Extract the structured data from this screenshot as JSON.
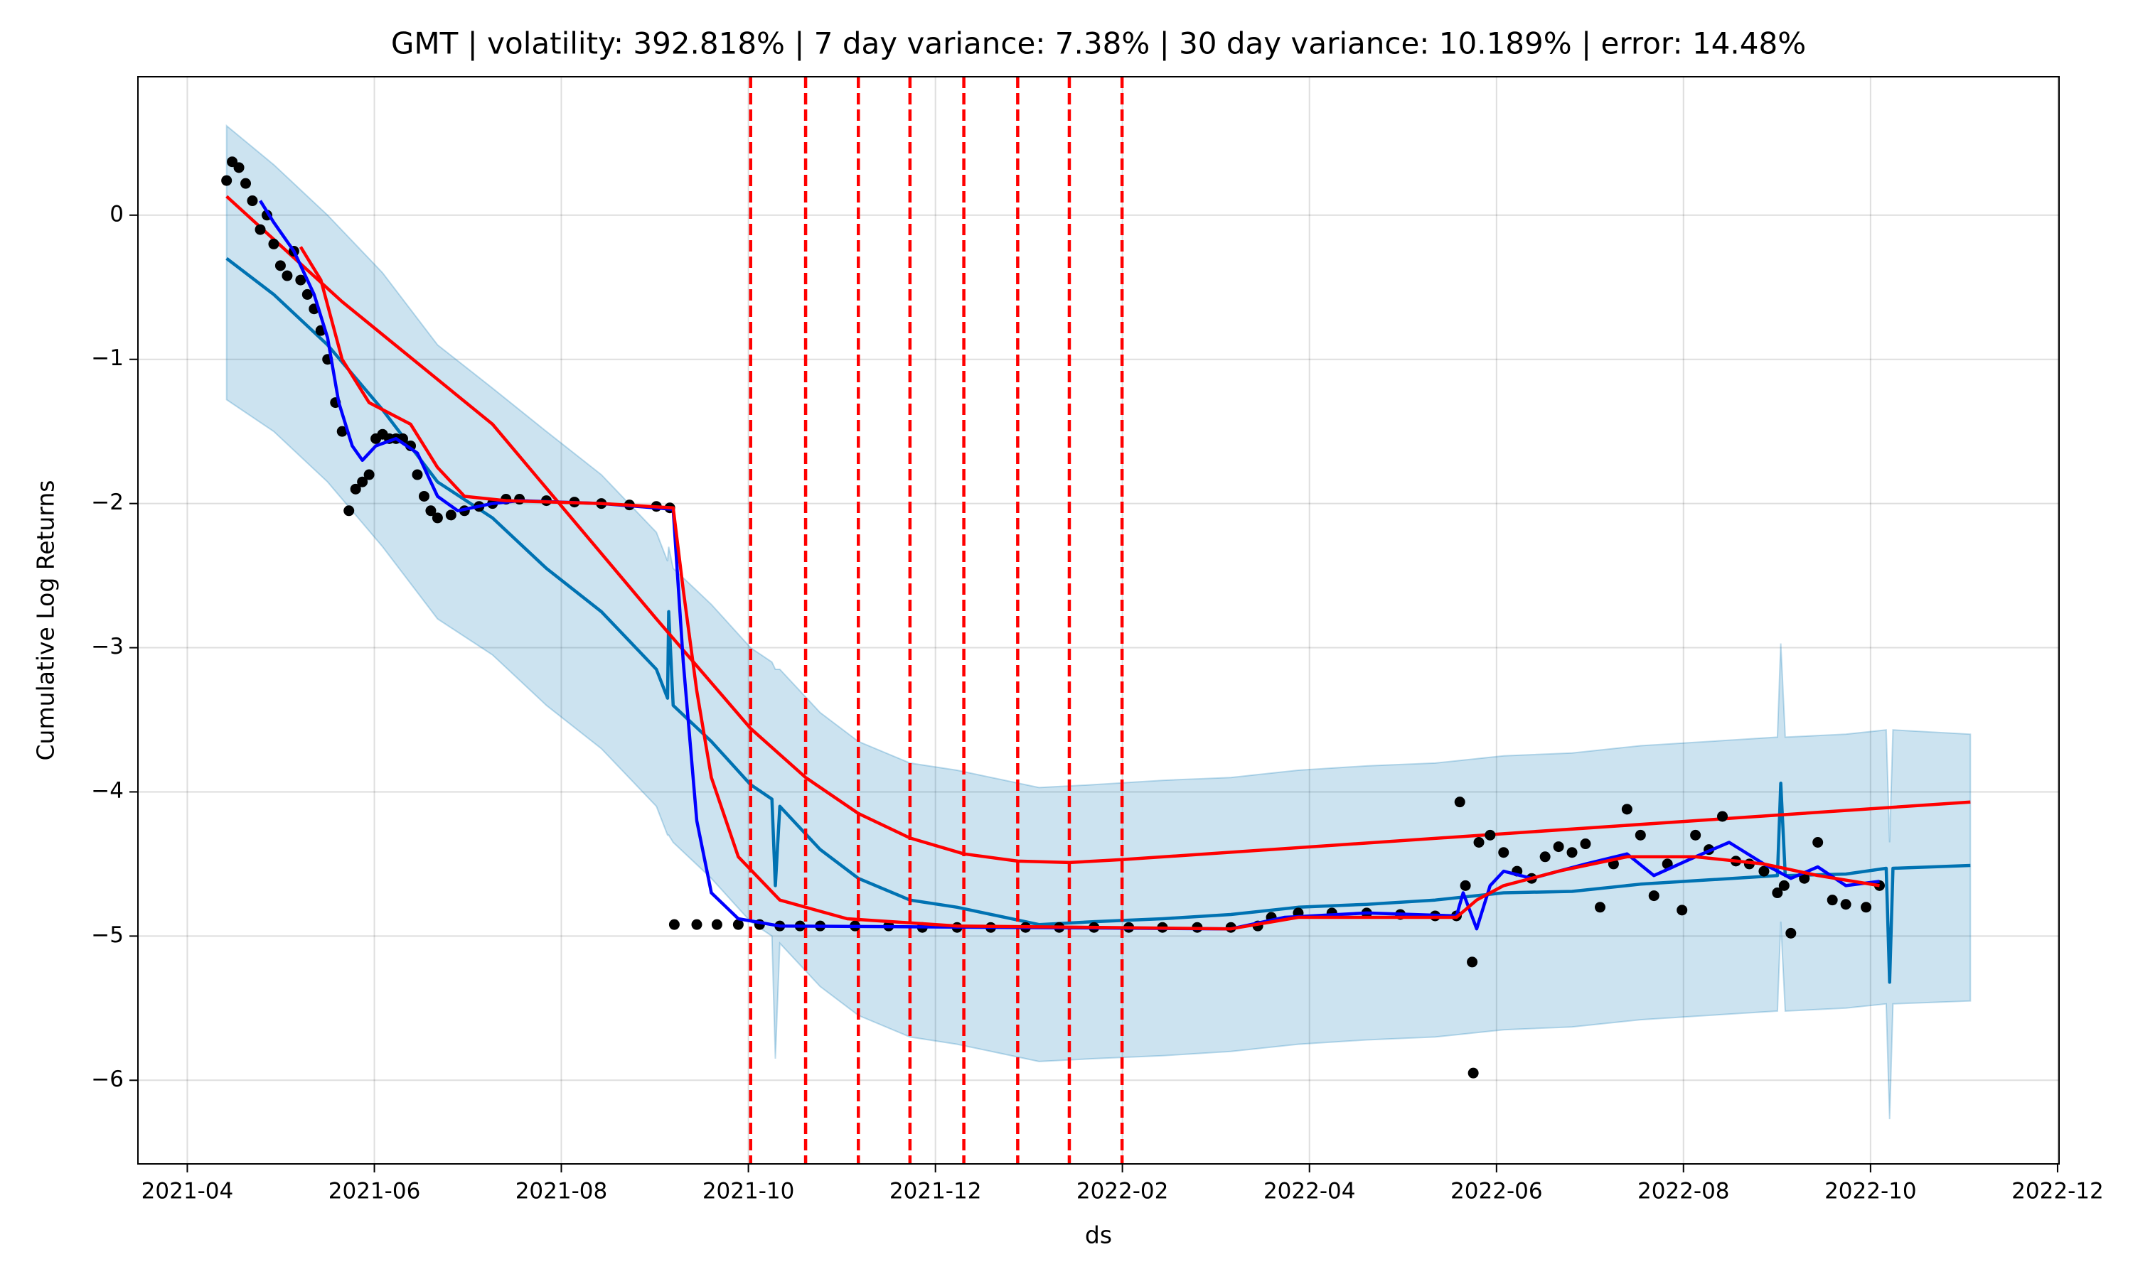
{
  "chart_data": {
    "type": "line",
    "title": "GMT | volatility: 392.818% | 7 day variance: 7.38% | 30 day variance: 10.189% | error: 14.48%",
    "xlabel": "ds",
    "ylabel": "Cumulative Log Returns",
    "grid": true,
    "xlim": [
      2021.206,
      2022.918
    ],
    "ylim": [
      -6.58,
      0.96
    ],
    "xticks": [
      {
        "value": 2021.25,
        "label": "2021-04"
      },
      {
        "value": 2021.4167,
        "label": "2021-06"
      },
      {
        "value": 2021.5833,
        "label": "2021-08"
      },
      {
        "value": 2021.75,
        "label": "2021-10"
      },
      {
        "value": 2021.9167,
        "label": "2021-12"
      },
      {
        "value": 2022.0833,
        "label": "2022-02"
      },
      {
        "value": 2022.25,
        "label": "2022-04"
      },
      {
        "value": 2022.4167,
        "label": "2022-06"
      },
      {
        "value": 2022.5833,
        "label": "2022-08"
      },
      {
        "value": 2022.75,
        "label": "2022-10"
      },
      {
        "value": 2022.9167,
        "label": "2022-12"
      }
    ],
    "yticks": [
      0,
      {
        "value": -1,
        "label": "−1"
      },
      {
        "value": -2,
        "label": "−2"
      },
      {
        "value": -3,
        "label": "−3"
      },
      {
        "value": -4,
        "label": "−4"
      },
      {
        "value": -5,
        "label": "−5"
      },
      {
        "value": -6,
        "label": "−6"
      }
    ],
    "series": [
      {
        "type": "line",
        "color": "#0072B2",
        "band_color": "#0072B2",
        "x": [
          2021.285,
          2021.327,
          2021.375,
          2021.424,
          2021.473,
          2021.522,
          2021.57,
          2021.619,
          2021.668,
          2021.678,
          2021.679,
          2021.683,
          2021.717,
          2021.752,
          2021.771,
          2021.774,
          2021.778,
          2021.814,
          2021.848,
          2021.894,
          2021.936,
          2022.009,
          2022.058,
          2022.119,
          2022.18,
          2022.24,
          2022.301,
          2022.362,
          2022.423,
          2022.484,
          2022.545,
          2022.606,
          2022.667,
          2022.67,
          2022.674,
          2022.728,
          2022.764,
          2022.767,
          2022.77,
          2022.839
        ],
        "values": [
          -0.3,
          -0.55,
          -0.9,
          -1.35,
          -1.85,
          -2.1,
          -2.45,
          -2.75,
          -3.15,
          -3.35,
          -2.75,
          -3.4,
          -3.65,
          -3.95,
          -4.05,
          -4.65,
          -4.1,
          -4.4,
          -4.6,
          -4.75,
          -4.8,
          -4.92,
          -4.9,
          -4.88,
          -4.85,
          -4.8,
          -4.78,
          -4.75,
          -4.7,
          -4.69,
          -4.64,
          -4.61,
          -4.58,
          -3.94,
          -4.58,
          -4.57,
          -4.53,
          -5.32,
          -4.53,
          -4.51
        ],
        "upper": [
          0.62,
          0.35,
          0.0,
          -0.4,
          -0.9,
          -1.2,
          -1.5,
          -1.8,
          -2.2,
          -2.4,
          -2.3,
          -2.45,
          -2.7,
          -3.0,
          -3.1,
          -3.15,
          -3.15,
          -3.45,
          -3.65,
          -3.8,
          -3.85,
          -3.97,
          -3.95,
          -3.92,
          -3.9,
          -3.85,
          -3.82,
          -3.8,
          -3.75,
          -3.73,
          -3.68,
          -3.65,
          -3.62,
          -2.97,
          -3.62,
          -3.6,
          -3.57,
          -4.35,
          -3.57,
          -3.6
        ],
        "lower": [
          -1.28,
          -1.5,
          -1.85,
          -2.3,
          -2.8,
          -3.05,
          -3.4,
          -3.7,
          -4.1,
          -4.3,
          -4.3,
          -4.35,
          -4.6,
          -4.9,
          -5.0,
          -5.85,
          -5.05,
          -5.35,
          -5.55,
          -5.7,
          -5.75,
          -5.87,
          -5.85,
          -5.83,
          -5.8,
          -5.75,
          -5.72,
          -5.7,
          -5.65,
          -5.63,
          -5.58,
          -5.55,
          -5.52,
          -4.9,
          -5.52,
          -5.5,
          -5.47,
          -6.27,
          -5.47,
          -5.45
        ]
      },
      {
        "type": "line",
        "color": "#ff0000",
        "x": [
          2021.285,
          2021.388,
          2021.522,
          2021.668,
          2021.752,
          2021.801,
          2021.848,
          2021.894,
          2021.942,
          2021.99,
          2022.036,
          2022.083,
          2022.839
        ],
        "values": [
          0.13,
          -0.6,
          -1.45,
          -2.8,
          -3.56,
          -3.9,
          -4.15,
          -4.32,
          -4.43,
          -4.48,
          -4.49,
          -4.47,
          -4.07
        ]
      },
      {
        "type": "scatter",
        "color": "#000000",
        "x": [
          2021.285,
          2021.29,
          2021.296,
          2021.302,
          2021.308,
          2021.315,
          2021.321,
          2021.327,
          2021.333,
          2021.339,
          2021.345,
          2021.351,
          2021.357,
          2021.363,
          2021.369,
          2021.375,
          2021.382,
          2021.388,
          2021.394,
          2021.4,
          2021.406,
          2021.412,
          2021.418,
          2021.424,
          2021.43,
          2021.436,
          2021.442,
          2021.449,
          2021.455,
          2021.461,
          2021.467,
          2021.473,
          2021.485,
          2021.497,
          2021.51,
          2021.522,
          2021.534,
          2021.546,
          2021.57,
          2021.595,
          2021.619,
          2021.644,
          2021.668,
          2021.68,
          2021.684,
          2021.704,
          2021.722,
          2021.741,
          2021.76,
          2021.778,
          2021.796,
          2021.814,
          2021.845,
          2021.875,
          2021.905,
          2021.936,
          2021.966,
          2021.997,
          2022.027,
          2022.058,
          2022.089,
          2022.119,
          2022.15,
          2022.18,
          2022.204,
          2022.216,
          2022.24,
          2022.27,
          2022.301,
          2022.331,
          2022.362,
          2022.381,
          2022.384,
          2022.389,
          2022.395,
          2022.396,
          2022.401,
          2022.411,
          2022.423,
          2022.435,
          2022.448,
          2022.46,
          2022.472,
          2022.484,
          2022.496,
          2022.509,
          2022.521,
          2022.533,
          2022.545,
          2022.557,
          2022.569,
          2022.582,
          2022.594,
          2022.606,
          2022.618,
          2022.63,
          2022.642,
          2022.655,
          2022.667,
          2022.673,
          2022.679,
          2022.691,
          2022.703,
          2022.716,
          2022.728,
          2022.746,
          2022.758
        ],
        "values": [
          0.24,
          0.37,
          0.33,
          0.22,
          0.1,
          -0.1,
          0.0,
          -0.2,
          -0.35,
          -0.42,
          -0.25,
          -0.45,
          -0.55,
          -0.65,
          -0.8,
          -1.0,
          -1.3,
          -1.5,
          -2.05,
          -1.9,
          -1.85,
          -1.8,
          -1.55,
          -1.52,
          -1.55,
          -1.55,
          -1.55,
          -1.6,
          -1.8,
          -1.95,
          -2.05,
          -2.1,
          -2.08,
          -2.05,
          -2.02,
          -2.0,
          -1.97,
          -1.97,
          -1.98,
          -1.99,
          -2.0,
          -2.01,
          -2.02,
          -2.03,
          -4.92,
          -4.92,
          -4.92,
          -4.92,
          -4.92,
          -4.93,
          -4.93,
          -4.93,
          -4.93,
          -4.93,
          -4.94,
          -4.94,
          -4.94,
          -4.94,
          -4.94,
          -4.94,
          -4.94,
          -4.94,
          -4.94,
          -4.94,
          -4.93,
          -4.87,
          -4.84,
          -4.84,
          -4.84,
          -4.85,
          -4.86,
          -4.86,
          -4.07,
          -4.65,
          -5.18,
          -5.95,
          -4.35,
          -4.3,
          -4.42,
          -4.55,
          -4.6,
          -4.45,
          -4.38,
          -4.42,
          -4.36,
          -4.8,
          -4.5,
          -4.12,
          -4.3,
          -4.72,
          -4.5,
          -4.82,
          -4.3,
          -4.4,
          -4.17,
          -4.48,
          -4.5,
          -4.55,
          -4.7,
          -4.65,
          -4.98,
          -4.6,
          -4.35,
          -4.75,
          -4.78,
          -4.8,
          -4.65
        ]
      },
      {
        "type": "line",
        "color": "#0000ff",
        "x": [
          2021.315,
          2021.327,
          2021.345,
          2021.363,
          2021.375,
          2021.385,
          2021.397,
          2021.406,
          2021.418,
          2021.436,
          2021.455,
          2021.473,
          2021.491,
          2021.522,
          2021.546,
          2021.619,
          2021.683,
          2021.692,
          2021.704,
          2021.717,
          2021.741,
          2021.778,
          2022.18,
          2022.228,
          2022.301,
          2022.381,
          2022.387,
          2022.399,
          2022.411,
          2022.423,
          2022.448,
          2022.472,
          2022.496,
          2022.533,
          2022.557,
          2022.594,
          2022.624,
          2022.655,
          2022.679,
          2022.703,
          2022.728,
          2022.758
        ],
        "values": [
          0.1,
          -0.05,
          -0.25,
          -0.55,
          -0.85,
          -1.3,
          -1.6,
          -1.7,
          -1.6,
          -1.55,
          -1.65,
          -1.95,
          -2.05,
          -2.0,
          -1.98,
          -2.0,
          -2.04,
          -3.1,
          -4.2,
          -4.7,
          -4.88,
          -4.93,
          -4.95,
          -4.87,
          -4.84,
          -4.86,
          -4.7,
          -4.95,
          -4.65,
          -4.55,
          -4.6,
          -4.55,
          -4.5,
          -4.43,
          -4.58,
          -4.45,
          -4.35,
          -4.5,
          -4.6,
          -4.52,
          -4.65,
          -4.62
        ]
      },
      {
        "type": "line",
        "color": "#ff0000",
        "x": [
          2021.351,
          2021.369,
          2021.388,
          2021.412,
          2021.449,
          2021.473,
          2021.497,
          2021.534,
          2021.619,
          2021.683,
          2021.692,
          2021.704,
          2021.717,
          2021.741,
          2021.778,
          2021.838,
          2021.936,
          2022.18,
          2022.24,
          2022.381,
          2022.399,
          2022.423,
          2022.472,
          2022.533,
          2022.594,
          2022.655,
          2022.703,
          2022.758
        ],
        "values": [
          -0.22,
          -0.45,
          -1.0,
          -1.3,
          -1.45,
          -1.75,
          -1.95,
          -1.98,
          -2.0,
          -2.03,
          -2.6,
          -3.3,
          -3.9,
          -4.45,
          -4.75,
          -4.88,
          -4.93,
          -4.95,
          -4.87,
          -4.87,
          -4.75,
          -4.65,
          -4.55,
          -4.45,
          -4.45,
          -4.5,
          -4.58,
          -4.65
        ]
      }
    ],
    "changepoints": {
      "color": "#ff0000",
      "x": [
        2021.752,
        2021.801,
        2021.848,
        2021.894,
        2021.942,
        2021.99,
        2022.036,
        2022.083
      ]
    }
  }
}
